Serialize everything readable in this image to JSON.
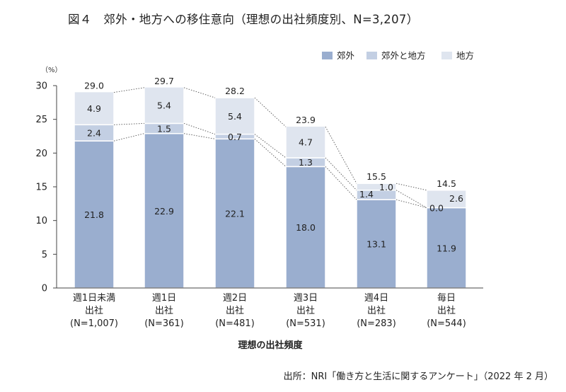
{
  "title": "図４　郊外・地方への移住意向（理想の出社頻度別、N=3,207）",
  "source": "出所：NRI「働き方と生活に関するアンケート」（2022 年 2 月）",
  "colors": {
    "suburb": "#9aaecf",
    "both": "#c3cfe3",
    "rural": "#dfe5ef",
    "connector": "#555555",
    "axis": "#444444"
  },
  "chart_data": {
    "type": "bar",
    "stacked": true,
    "unit_label": "（%）",
    "xlabel": "理想の出社頻度",
    "ylim": [
      0,
      30
    ],
    "yticks": [
      0,
      5,
      10,
      15,
      20,
      25,
      30
    ],
    "legend_position": "top-right",
    "categories": [
      [
        "週1日未満",
        "出社",
        "(N=1,007)"
      ],
      [
        "週1日",
        "出社",
        "(N=361)"
      ],
      [
        "週2日",
        "出社",
        "(N=481)"
      ],
      [
        "週3日",
        "出社",
        "(N=531)"
      ],
      [
        "週4日",
        "出社",
        "(N=283)"
      ],
      [
        "毎日",
        "出社",
        "(N=544)"
      ]
    ],
    "series": [
      {
        "name": "郊外",
        "values": [
          21.8,
          22.9,
          22.1,
          18.0,
          13.1,
          11.9
        ],
        "labels": [
          "21.8",
          "22.9",
          "22.1",
          "18.0",
          "13.1",
          "11.9"
        ]
      },
      {
        "name": "郊外と地方",
        "values": [
          2.4,
          1.5,
          0.7,
          1.3,
          1.4,
          0.0
        ],
        "labels": [
          "2.4",
          "1.5",
          "0.7",
          "1.3",
          "1.4",
          "0.0"
        ]
      },
      {
        "name": "地方",
        "values": [
          4.9,
          5.4,
          5.4,
          4.7,
          1.0,
          2.6
        ],
        "labels": [
          "4.9",
          "5.4",
          "5.4",
          "4.7",
          "1.0",
          "2.6"
        ]
      }
    ],
    "totals": [
      29.0,
      29.7,
      28.2,
      23.9,
      15.5,
      14.5
    ],
    "total_labels": [
      "29.0",
      "29.7",
      "28.2",
      "23.9",
      "15.5",
      "14.5"
    ]
  }
}
